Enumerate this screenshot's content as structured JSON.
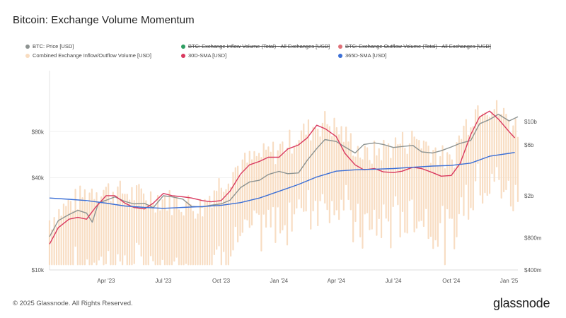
{
  "title": "Bitcoin: Exchange Volume Momentum",
  "footer": "© 2025 Glassnode. All Rights Reserved.",
  "brand": "glassnode",
  "legend": [
    {
      "label": "BTC: Price [USD]",
      "color": "#8d9391",
      "struck": false
    },
    {
      "label": "BTC: Exchange Inflow Volume (Total) - All Exchanges [USD]",
      "color": "#2e9e62",
      "struck": true
    },
    {
      "label": "BTC: Exchange Outflow Volume (Total) - All Exchanges [USD]",
      "color": "#e07078",
      "struck": true
    },
    {
      "label": "Combined Exchange Inflow/Outflow Volume [USD]",
      "color": "#f8dcc0",
      "struck": false
    },
    {
      "label": "30D-SMA [USD]",
      "color": "#d9395f",
      "struck": false
    },
    {
      "label": "365D-SMA [USD]",
      "color": "#3b6fd6",
      "struck": false
    }
  ],
  "chart_data": {
    "type": "line",
    "title": "Bitcoin: Exchange Volume Momentum",
    "x_ticks": [
      "Apr '23",
      "Jul '23",
      "Oct '23",
      "Jan '24",
      "Apr '24",
      "Jul '24",
      "Oct '24",
      "Jan '25"
    ],
    "y_left_ticks": [
      "$10k",
      "$40k",
      "$80k"
    ],
    "y_right_ticks": [
      "$400m",
      "$800m",
      "$2b",
      "$6b",
      "$10b"
    ],
    "y_left_scale": "log",
    "y_right_scale": "log",
    "y_left_range": [
      10000,
      200000
    ],
    "y_right_range": [
      400000000,
      30000000000
    ],
    "x_range": [
      "2023-01-01",
      "2025-01-15"
    ],
    "grid": "horizontal",
    "series": [
      {
        "name": "BTC: Price [USD]",
        "axis": "left",
        "x": [
          "2023-01-01",
          "2023-01-15",
          "2023-02-01",
          "2023-02-15",
          "2023-03-01",
          "2023-03-10",
          "2023-03-20",
          "2023-04-01",
          "2023-04-15",
          "2023-05-01",
          "2023-05-15",
          "2023-06-01",
          "2023-06-15",
          "2023-07-01",
          "2023-07-15",
          "2023-08-01",
          "2023-08-15",
          "2023-09-01",
          "2023-09-15",
          "2023-10-01",
          "2023-10-15",
          "2023-11-01",
          "2023-11-15",
          "2023-12-01",
          "2023-12-15",
          "2024-01-01",
          "2024-01-15",
          "2024-02-01",
          "2024-02-15",
          "2024-03-01",
          "2024-03-14",
          "2024-04-01",
          "2024-04-15",
          "2024-05-01",
          "2024-05-15",
          "2024-06-01",
          "2024-06-15",
          "2024-07-01",
          "2024-07-15",
          "2024-08-01",
          "2024-08-15",
          "2024-09-01",
          "2024-09-15",
          "2024-10-01",
          "2024-10-15",
          "2024-11-01",
          "2024-11-15",
          "2024-12-01",
          "2024-12-15",
          "2025-01-01",
          "2025-01-15"
        ],
        "y": [
          16500,
          21000,
          23000,
          24500,
          23500,
          20500,
          27500,
          28500,
          30000,
          28000,
          27000,
          27200,
          25500,
          30500,
          30000,
          29000,
          26000,
          25800,
          26500,
          27000,
          28500,
          34500,
          37500,
          38500,
          42000,
          44000,
          42500,
          43000,
          52000,
          62000,
          71000,
          69000,
          63500,
          58000,
          66000,
          67500,
          66000,
          63000,
          64000,
          65000,
          59000,
          58000,
          60000,
          63500,
          67000,
          70000,
          90000,
          96000,
          104000,
          94000,
          100000
        ]
      },
      {
        "name": "30D-SMA [USD]",
        "axis": "right",
        "x": [
          "2023-01-01",
          "2023-01-15",
          "2023-02-01",
          "2023-02-15",
          "2023-03-01",
          "2023-03-15",
          "2023-04-01",
          "2023-04-15",
          "2023-05-01",
          "2023-05-15",
          "2023-06-01",
          "2023-06-15",
          "2023-07-01",
          "2023-07-15",
          "2023-08-01",
          "2023-08-15",
          "2023-09-01",
          "2023-09-15",
          "2023-10-01",
          "2023-10-15",
          "2023-11-01",
          "2023-11-15",
          "2023-12-01",
          "2023-12-15",
          "2024-01-01",
          "2024-01-15",
          "2024-02-01",
          "2024-02-15",
          "2024-03-01",
          "2024-03-15",
          "2024-04-01",
          "2024-04-15",
          "2024-05-01",
          "2024-05-15",
          "2024-06-01",
          "2024-06-15",
          "2024-07-01",
          "2024-07-15",
          "2024-08-01",
          "2024-08-15",
          "2024-09-01",
          "2024-09-15",
          "2024-10-01",
          "2024-10-15",
          "2024-11-01",
          "2024-11-15",
          "2024-12-01",
          "2024-12-15",
          "2025-01-01",
          "2025-01-10"
        ],
        "y": [
          0.7,
          1.0,
          1.2,
          1.25,
          1.2,
          1.55,
          2.0,
          2.0,
          1.7,
          1.55,
          1.5,
          1.7,
          2.1,
          2.0,
          1.95,
          1.9,
          1.8,
          1.75,
          1.8,
          2.2,
          3.2,
          3.9,
          4.2,
          4.6,
          4.6,
          5.5,
          6.0,
          7.0,
          9.2,
          8.5,
          7.2,
          5.0,
          3.9,
          3.5,
          3.6,
          3.35,
          3.3,
          3.4,
          3.7,
          3.6,
          3.3,
          3.05,
          3.1,
          4.0,
          7.5,
          11.0,
          12.5,
          10.5,
          8.0,
          7.0
        ]
      },
      {
        "name": "365D-SMA [USD]",
        "axis": "right",
        "x": [
          "2023-01-01",
          "2023-02-01",
          "2023-03-01",
          "2023-04-01",
          "2023-05-01",
          "2023-06-01",
          "2023-07-01",
          "2023-08-01",
          "2023-09-01",
          "2023-10-01",
          "2023-11-01",
          "2023-12-01",
          "2024-01-01",
          "2024-02-01",
          "2024-03-01",
          "2024-04-01",
          "2024-05-01",
          "2024-06-01",
          "2024-07-01",
          "2024-08-01",
          "2024-09-01",
          "2024-10-01",
          "2024-11-01",
          "2024-12-01",
          "2025-01-01",
          "2025-01-10"
        ],
        "y": [
          1.9,
          1.85,
          1.8,
          1.7,
          1.6,
          1.55,
          1.52,
          1.55,
          1.58,
          1.62,
          1.72,
          1.9,
          2.2,
          2.55,
          3.0,
          3.4,
          3.5,
          3.55,
          3.6,
          3.7,
          3.8,
          3.85,
          4.05,
          4.7,
          5.0,
          5.1
        ]
      }
    ],
    "bars": {
      "name": "Combined Exchange Inflow/Outflow Volume [USD]",
      "axis": "right",
      "x_start": "2023-01-01",
      "x_end": "2025-01-15",
      "count": 200
    }
  }
}
